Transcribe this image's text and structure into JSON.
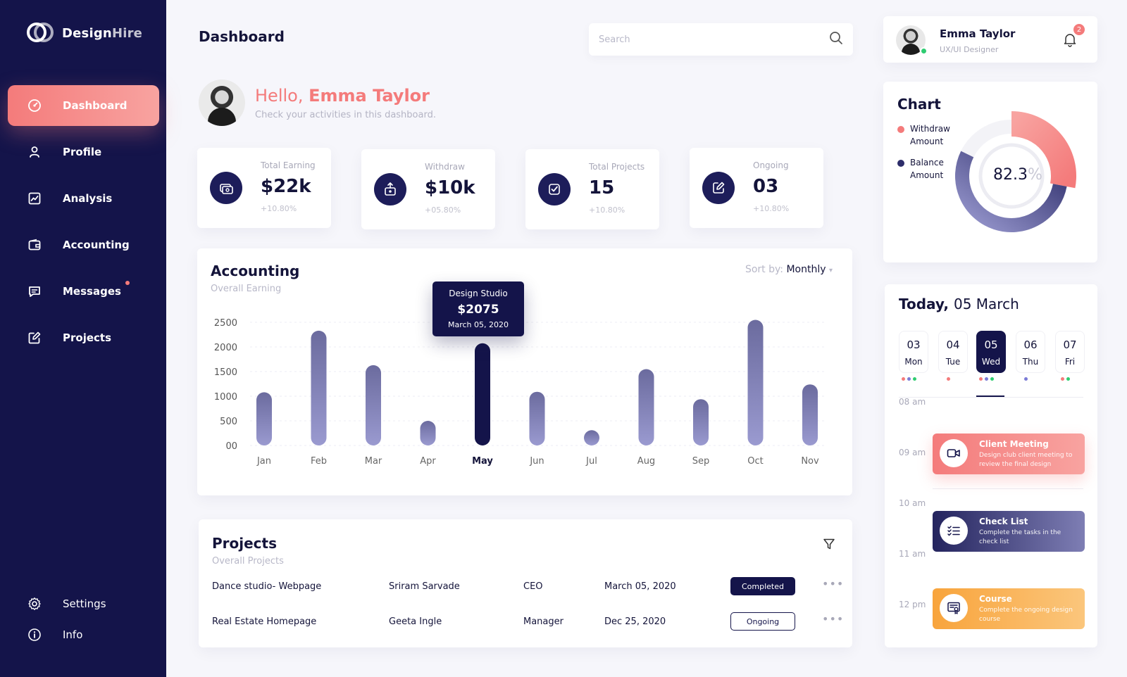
{
  "brand": {
    "name_a": "Design",
    "name_b": "Hire"
  },
  "sidebar": {
    "items": [
      {
        "label": "Dashboard"
      },
      {
        "label": "Profile"
      },
      {
        "label": "Analysis"
      },
      {
        "label": "Accounting"
      },
      {
        "label": "Messages"
      },
      {
        "label": "Projects"
      }
    ],
    "bottom": [
      {
        "label": "Settings"
      },
      {
        "label": "Info"
      }
    ]
  },
  "header": {
    "title": "Dashboard",
    "search_placeholder": "Search"
  },
  "greeting": {
    "hello": "Hello,",
    "name": "Emma Taylor",
    "subtitle": "Check your activities in this dashboard."
  },
  "stats": [
    {
      "label": "Total Earning",
      "value": "$22k",
      "delta": "+10.80%"
    },
    {
      "label": "Withdraw",
      "value": "$10k",
      "delta": "+05.80%"
    },
    {
      "label": "Total Projects",
      "value": "15",
      "delta": "+10.80%"
    },
    {
      "label": "Ongoing",
      "value": "03",
      "delta": "+10.80%"
    }
  ],
  "accounting": {
    "title": "Accounting",
    "subtitle": "Overall Earning",
    "sort_label": "Sort by:",
    "sort_value": "Monthly",
    "tooltip": {
      "title": "Design Studio",
      "value": "$2075",
      "date": "March 05, 2020"
    }
  },
  "chart_data": {
    "type": "bar",
    "categories": [
      "Jan",
      "Feb",
      "Mar",
      "Apr",
      "May",
      "Jun",
      "Jul",
      "Aug",
      "Sep",
      "Oct",
      "Nov"
    ],
    "values": [
      1080,
      2330,
      1630,
      500,
      2075,
      1090,
      310,
      1550,
      940,
      2550,
      1240
    ],
    "highlight": "May",
    "yticks": [
      "00",
      "500",
      "1000",
      "1500",
      "2000",
      "2500"
    ],
    "ylim": [
      0,
      2500
    ],
    "grid": true,
    "colors": {
      "bar": "#6b6b9e",
      "bar_light": "#9a9ad0",
      "highlight": "#14144a"
    }
  },
  "projects": {
    "title": "Projects",
    "subtitle": "Overall Projects",
    "rows": [
      {
        "name": "Dance studio- Webpage",
        "person": "Sriram Sarvade",
        "role": "CEO",
        "date": "March 05, 2020",
        "status": "Completed"
      },
      {
        "name": "Real Estate Homepage",
        "person": "Geeta Ingle",
        "role": "Manager",
        "date": "Dec 25, 2020",
        "status": "Ongoing"
      }
    ]
  },
  "user": {
    "name": "Emma Taylor",
    "role": "UX/UI Designer",
    "notifications": "2"
  },
  "donut": {
    "title": "Chart",
    "legend": [
      {
        "label_1": "Withdraw",
        "label_2": "Amount",
        "color": "#f47b7b"
      },
      {
        "label_1": "Balance",
        "label_2": "Amount",
        "color": "#2d2d6a"
      }
    ],
    "value": "82.3",
    "unit": "%",
    "withdraw_pct": 28,
    "balance_pct": 54.3
  },
  "today": {
    "title_a": "Today,",
    "title_b": "05 March",
    "days": [
      {
        "num": "03",
        "name": "Mon",
        "dots": [
          "#f47b7b",
          "#7b7bd6",
          "#2ecc71"
        ]
      },
      {
        "num": "04",
        "name": "Tue",
        "dots": [
          "#f47b7b"
        ]
      },
      {
        "num": "05",
        "name": "Wed",
        "dots": [
          "#f47b7b",
          "#7b7bd6",
          "#2ecc71"
        ]
      },
      {
        "num": "06",
        "name": "Thu",
        "dots": [
          "#7b7bd6"
        ]
      },
      {
        "num": "07",
        "name": "Fri",
        "dots": [
          "#f47b7b",
          "#2ecc71"
        ]
      }
    ],
    "hours": [
      "08 am",
      "09 am",
      "10 am",
      "11 am",
      "12 pm"
    ],
    "events": [
      {
        "title": "Client Meeting",
        "desc": "Design club client meeting to review the final design",
        "icon": "video-icon"
      },
      {
        "title": "Check List",
        "desc": "Complete the tasks in the check list",
        "icon": "checklist-icon"
      },
      {
        "title": "Course",
        "desc": "Complete the ongoing design course",
        "icon": "certificate-icon"
      }
    ]
  }
}
